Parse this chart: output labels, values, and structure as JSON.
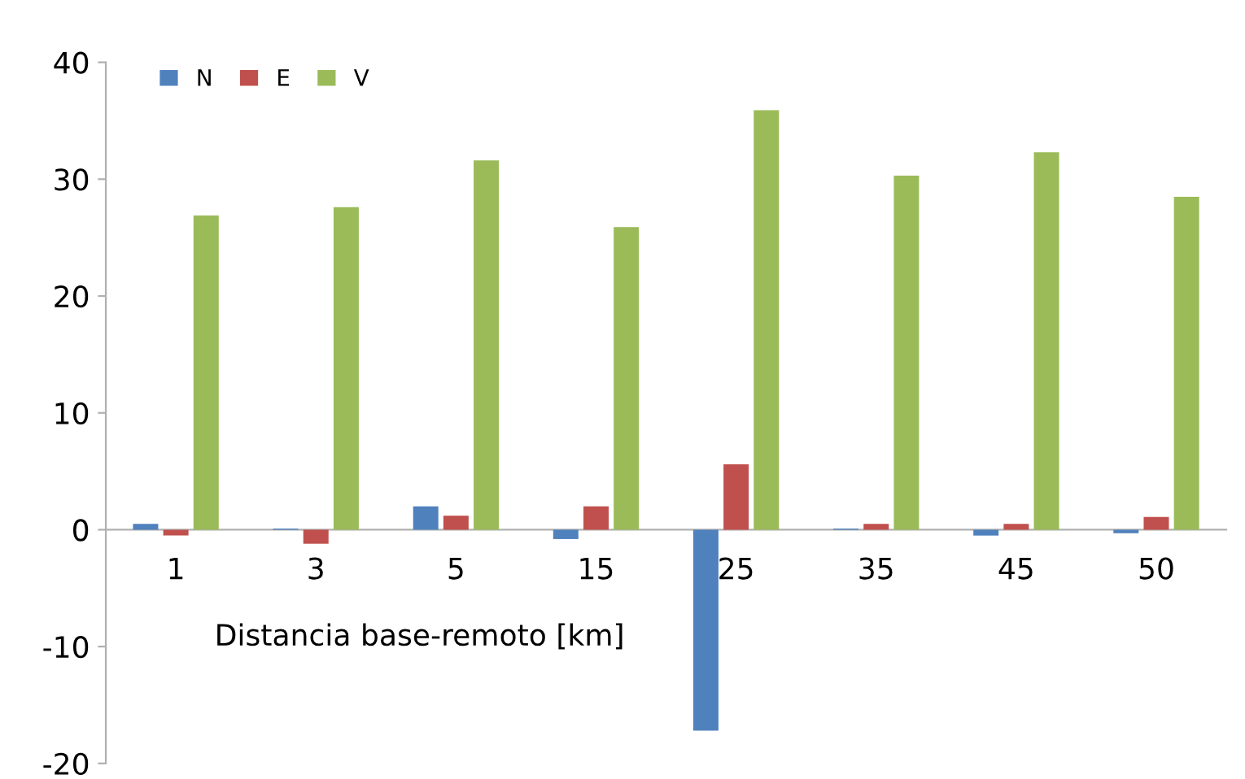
{
  "chart_data": {
    "type": "bar",
    "xlabel": "Distancia base-remoto [km]",
    "categories": [
      "1",
      "3",
      "5",
      "15",
      "25",
      "35",
      "45",
      "50"
    ],
    "series": [
      {
        "name": "N",
        "color": "#4f81bd",
        "values": [
          0.5,
          0.1,
          2.0,
          -0.8,
          -17.2,
          0.1,
          -0.5,
          -0.3
        ]
      },
      {
        "name": "E",
        "color": "#c0504d",
        "values": [
          -0.5,
          -1.2,
          1.2,
          2.0,
          5.6,
          0.5,
          0.5,
          1.1
        ]
      },
      {
        "name": "V",
        "color": "#9bbb59",
        "values": [
          26.9,
          27.6,
          31.6,
          25.9,
          35.9,
          30.3,
          32.3,
          28.5
        ]
      }
    ],
    "ylim": [
      -20,
      40
    ],
    "yticks": [
      -20,
      -10,
      0,
      10,
      20,
      30,
      40
    ],
    "grid": false,
    "legend": "top left"
  }
}
